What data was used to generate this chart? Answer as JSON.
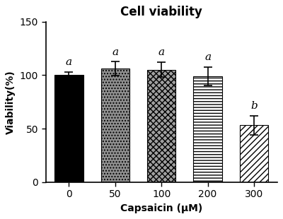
{
  "title": "Cell viability",
  "xlabel": "Capsaicin (μM)",
  "ylabel": "Viability(%)",
  "categories": [
    "0",
    "50",
    "100",
    "200",
    "300"
  ],
  "values": [
    100.0,
    106.0,
    105.0,
    99.0,
    53.0
  ],
  "errors": [
    3.0,
    6.5,
    7.0,
    8.5,
    9.0
  ],
  "sig_labels": [
    "a",
    "a",
    "a",
    "a",
    "b"
  ],
  "ylim": [
    0,
    150
  ],
  "yticks": [
    0,
    50,
    100,
    150
  ],
  "title_fontsize": 12,
  "label_fontsize": 10,
  "tick_fontsize": 10,
  "sig_fontsize": 11,
  "bar_width": 0.62
}
